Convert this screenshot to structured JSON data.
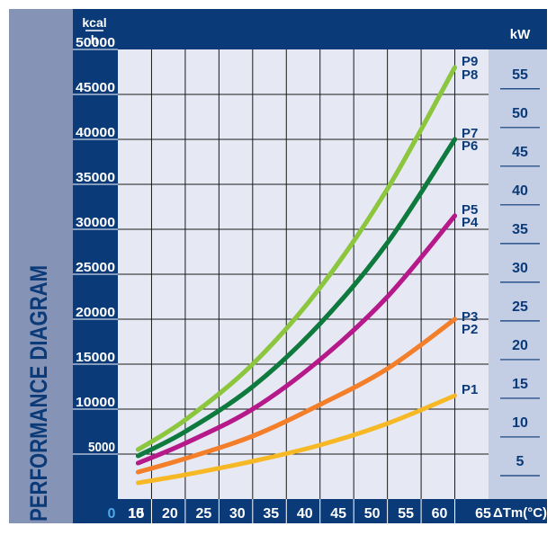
{
  "chart_data": {
    "type": "line",
    "title": "PERFORMANCE DIAGRAM",
    "y_unit": {
      "numerator": "kcal",
      "denominator": "h"
    },
    "y2_unit": "kW",
    "x_unit": "ΔTm(°C)",
    "x_origin_label": "0",
    "xlim": [
      10,
      65
    ],
    "ylim": [
      0,
      50000
    ],
    "x_ticks": [
      "10",
      "15",
      "20",
      "25",
      "30",
      "35",
      "40",
      "45",
      "50",
      "55",
      "60",
      "65"
    ],
    "y_ticks": [
      "5000",
      "10000",
      "15000",
      "20000",
      "25000",
      "30000",
      "35000",
      "40000",
      "45000",
      "50000"
    ],
    "y2_ticks": [
      "5",
      "10",
      "15",
      "20",
      "25",
      "30",
      "35",
      "40",
      "45",
      "50",
      "55"
    ],
    "grid": true,
    "series": [
      {
        "name": "P1",
        "color": "#f7b825",
        "x": [
          13,
          20,
          30,
          40,
          50,
          60
        ],
        "y": [
          1800,
          2700,
          4200,
          6000,
          8400,
          11500
        ]
      },
      {
        "name": "P2",
        "color": "#f47f2a",
        "x": [
          13,
          20,
          30,
          40,
          50,
          60
        ],
        "y": [
          3000,
          4500,
          7000,
          10500,
          14500,
          20000
        ]
      },
      {
        "name": "P3",
        "color": "#f47f2a",
        "x": [
          13,
          20,
          30,
          40,
          50,
          60
        ],
        "y": [
          3000,
          4500,
          7000,
          10500,
          14500,
          20000
        ]
      },
      {
        "name": "P4",
        "color": "#b5198a",
        "x": [
          13,
          20,
          30,
          40,
          50,
          60
        ],
        "y": [
          4000,
          6200,
          10000,
          15500,
          22500,
          31500
        ]
      },
      {
        "name": "P5",
        "color": "#b5198a",
        "x": [
          13,
          20,
          30,
          40,
          50,
          60
        ],
        "y": [
          4000,
          6200,
          10000,
          15500,
          22500,
          31500
        ]
      },
      {
        "name": "P6",
        "color": "#0f7a3d",
        "x": [
          13,
          20,
          30,
          40,
          50,
          60
        ],
        "y": [
          4800,
          7500,
          12500,
          19500,
          28500,
          40000
        ]
      },
      {
        "name": "P7",
        "color": "#0f7a3d",
        "x": [
          13,
          20,
          30,
          40,
          50,
          60
        ],
        "y": [
          4800,
          7500,
          12500,
          19500,
          28500,
          40000
        ]
      },
      {
        "name": "P8",
        "color": "#8cc63f",
        "x": [
          13,
          20,
          30,
          40,
          50,
          60
        ],
        "y": [
          5500,
          8800,
          15000,
          23500,
          34500,
          48000
        ]
      },
      {
        "name": "P9",
        "color": "#8cc63f",
        "x": [
          13,
          20,
          30,
          40,
          50,
          60
        ],
        "y": [
          5500,
          8800,
          15000,
          23500,
          34500,
          48000
        ]
      }
    ],
    "curve_labels": [
      {
        "text": "P1",
        "x": 61,
        "y": 12300
      },
      {
        "text": "P2",
        "x": 61,
        "y": 19000
      },
      {
        "text": "P3",
        "x": 61,
        "y": 20400
      },
      {
        "text": "P4",
        "x": 61,
        "y": 30900
      },
      {
        "text": "P5",
        "x": 61,
        "y": 32300
      },
      {
        "text": "P6",
        "x": 61,
        "y": 39400
      },
      {
        "text": "P7",
        "x": 61,
        "y": 40800
      },
      {
        "text": "P8",
        "x": 61,
        "y": 47300
      },
      {
        "text": "P9",
        "x": 61,
        "y": 48800
      }
    ],
    "colors": {
      "frame": "#0b3a78",
      "plot_bg": "#e6e9f4",
      "kw_band": "#c3cde4",
      "title_band": "#8593b6",
      "grid": "#1a1a1a",
      "label_blue": "#0b3a78",
      "light_blue": "#4ea8e8"
    }
  }
}
